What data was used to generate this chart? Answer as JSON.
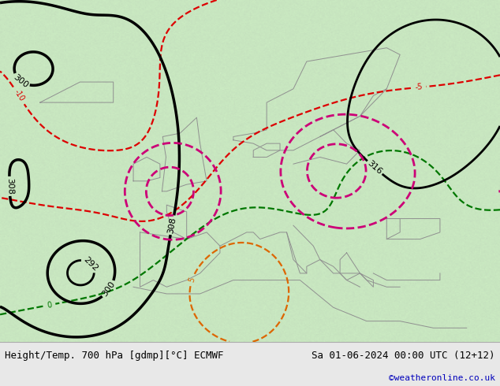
{
  "title_left": "Height/Temp. 700 hPa [gdmp][°C] ECMWF",
  "title_right": "Sa 01-06-2024 00:00 UTC (12+12)",
  "copyright": "©weatheronline.co.uk",
  "bg_color": "#c8e6c0",
  "footer_bg": "#e8e8e8",
  "footer_text_color": "#000000",
  "copyright_color": "#0000bb",
  "figsize": [
    6.34,
    4.9
  ],
  "dpi": 100,
  "geopotential_color": "#000000",
  "temp_negative_color": "#dd0000",
  "temp_positive_color": "#dd6600",
  "temp_pink_color": "#cc0077",
  "temp_zero_color": "#007700"
}
